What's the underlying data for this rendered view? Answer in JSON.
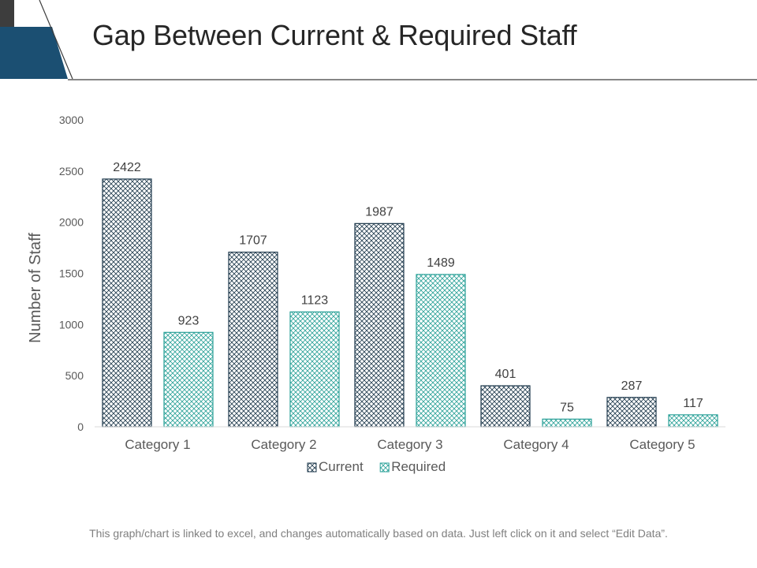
{
  "slide": {
    "title": "Gap Between Current & Required Staff",
    "footer": "This graph/chart is linked to excel, and changes automatically based on data. Just left click on it and select “Edit Data”."
  },
  "colors": {
    "accent_dark": "#1b4f72",
    "accent_light": "#2e6d96",
    "current_stroke": "#1f3a4d",
    "required_stroke": "#2aa198",
    "axis": "#d9d9d9"
  },
  "chart_data": {
    "type": "bar",
    "title": "",
    "xlabel": "",
    "ylabel": "Number of Staff",
    "ylim": [
      0,
      3000
    ],
    "yticks": [
      0,
      500,
      1000,
      1500,
      2000,
      2500,
      3000
    ],
    "categories": [
      "Category 1",
      "Category 2",
      "Category 3",
      "Category 4",
      "Category 5"
    ],
    "series": [
      {
        "name": "Current",
        "values": [
          2422,
          1707,
          1987,
          401,
          287
        ]
      },
      {
        "name": "Required",
        "values": [
          923,
          1123,
          1489,
          75,
          117
        ]
      }
    ],
    "legend": "bottom",
    "grid": false
  }
}
